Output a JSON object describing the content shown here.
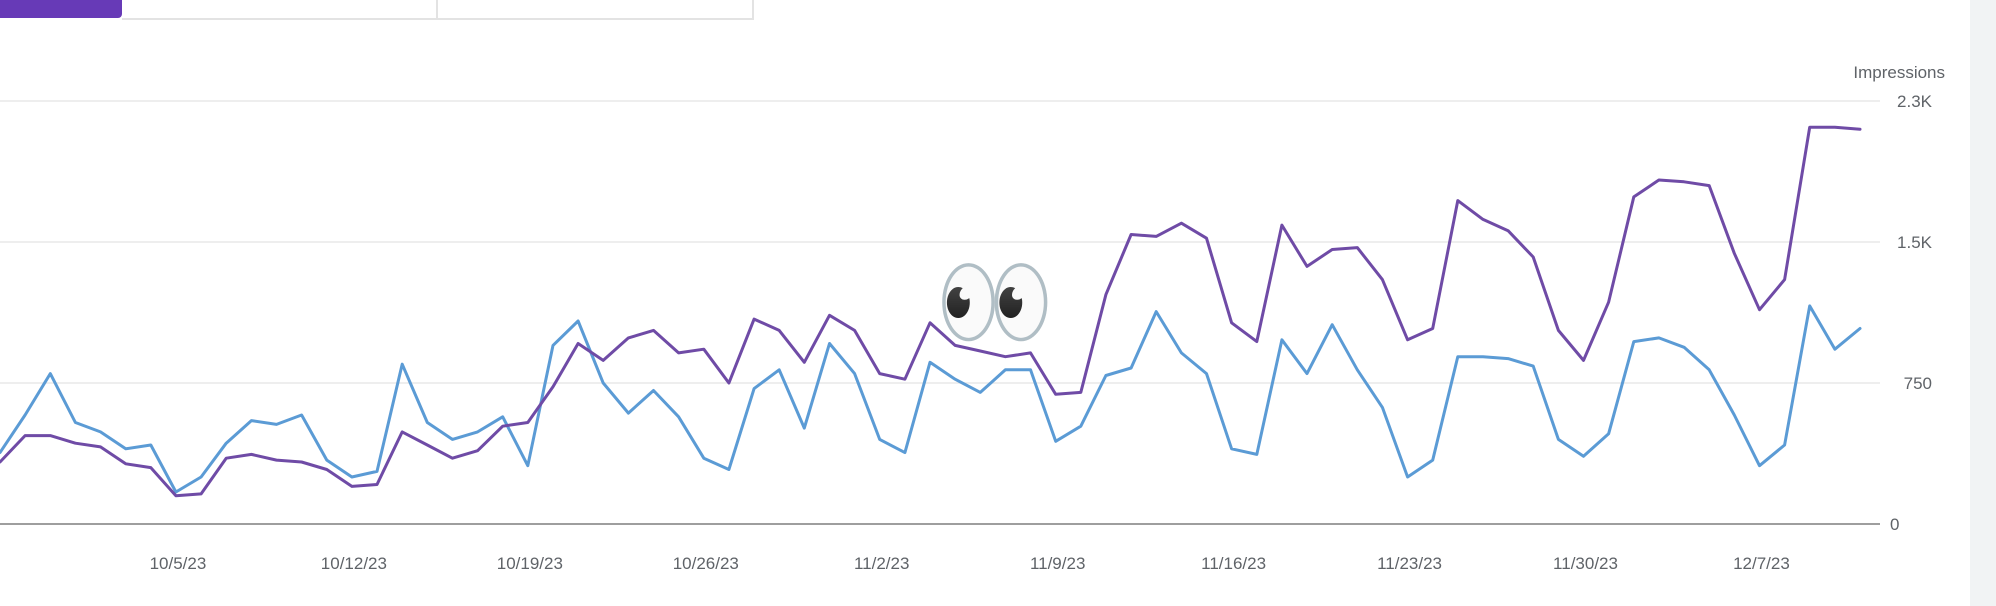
{
  "chart_data": {
    "type": "line",
    "ylabel": "Impressions",
    "ylim": [
      0,
      2250
    ],
    "yticks": [
      {
        "value": 0,
        "label": "0"
      },
      {
        "value": 750,
        "label": "750"
      },
      {
        "value": 1500,
        "label": "1.5K"
      },
      {
        "value": 2250,
        "label": "2.3K"
      }
    ],
    "xticks": [
      "10/5/23",
      "10/12/23",
      "10/19/23",
      "10/26/23",
      "11/2/23",
      "11/9/23",
      "11/16/23",
      "11/23/23",
      "11/30/23",
      "12/7/23"
    ],
    "x_start": "9/28/23",
    "x_end": "12/13/23",
    "grid": true,
    "series": [
      {
        "color": "#6f4ba6",
        "values": [
          330,
          470,
          470,
          430,
          410,
          320,
          300,
          150,
          160,
          350,
          370,
          340,
          330,
          290,
          200,
          210,
          490,
          420,
          350,
          390,
          520,
          540,
          730,
          960,
          870,
          990,
          1030,
          910,
          930,
          750,
          1090,
          1030,
          860,
          1110,
          1030,
          800,
          770,
          1070,
          950,
          920,
          890,
          910,
          690,
          700,
          1220,
          1540,
          1530,
          1600,
          1520,
          1070,
          970,
          1590,
          1370,
          1460,
          1470,
          1300,
          980,
          1040,
          1720,
          1620,
          1560,
          1420,
          1030,
          870,
          1180,
          1740,
          1830,
          1820,
          1800,
          1440,
          1140,
          1300,
          2110,
          2110,
          2100
        ]
      },
      {
        "color": "#5b9bd5",
        "values": [
          380,
          580,
          800,
          540,
          490,
          400,
          420,
          170,
          250,
          430,
          550,
          530,
          580,
          340,
          250,
          280,
          850,
          540,
          450,
          490,
          570,
          310,
          950,
          1080,
          750,
          590,
          710,
          570,
          350,
          290,
          720,
          820,
          510,
          960,
          800,
          450,
          380,
          860,
          770,
          700,
          820,
          820,
          440,
          520,
          790,
          830,
          1130,
          910,
          800,
          400,
          370,
          980,
          800,
          1060,
          820,
          620,
          250,
          340,
          890,
          890,
          880,
          840,
          450,
          360,
          480,
          970,
          990,
          940,
          820,
          580,
          310,
          420,
          1160,
          930,
          1040
        ]
      }
    ],
    "annotation": "👀"
  }
}
